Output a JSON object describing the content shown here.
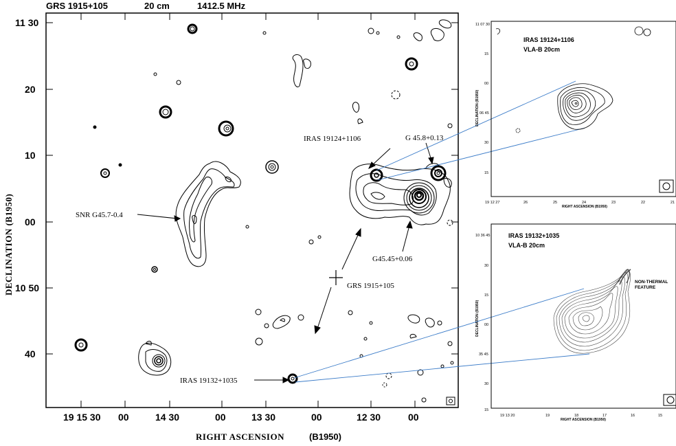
{
  "header": {
    "source": "GRS 1915+105",
    "wavelength": "20 cm",
    "frequency": "1412.5 MHz"
  },
  "main_panel": {
    "xlabel": "RIGHT ASCENSION",
    "xlabel_epoch": "(B1950)",
    "ylabel": "DECLINATION (B1950)",
    "x_ticks": [
      "19 15 30",
      "00",
      "14 30",
      "00",
      "13 30",
      "00",
      "12 30",
      "00"
    ],
    "y_ticks": [
      "11 30",
      "20",
      "10",
      "00",
      "10 50",
      "40"
    ]
  },
  "annotations": {
    "snr": "SNR G45.7-0.4",
    "iras1": "IRAS 19124+1106",
    "g458": "G 45.8+0.13",
    "g4545": "G45.45+0.06",
    "grs": "GRS 1915+105",
    "iras2": "IRAS 19132+1035"
  },
  "inset_top": {
    "title1": "IRAS 19124+1106",
    "title2": "VLA-B  20cm",
    "ylabel": "DECLINATION (B1950)",
    "xlabel": "RIGHT ASCENSION (B1950)",
    "y_ticks": [
      "11 07 30",
      "15",
      "00",
      "06 45",
      "30",
      "15"
    ],
    "x_ticks": [
      "19 12 27",
      "26",
      "25",
      "24",
      "23",
      "22",
      "21"
    ]
  },
  "inset_bottom": {
    "title1": "IRAS 19132+1035",
    "title2": "VLA-B  20cm",
    "feature": "NON-THERMAL",
    "feature2": "FEATURE",
    "ylabel": "DECLINATION (B1950)",
    "xlabel": "RIGHT ASCENSION (B1950)",
    "y_ticks": [
      "10 36 45",
      "30",
      "15",
      "00",
      "35 45",
      "30",
      "15"
    ],
    "x_ticks": [
      "19 13 20",
      "19",
      "18",
      "17",
      "16",
      "15"
    ]
  },
  "chart_data": {
    "type": "contour",
    "title": "GRS 1915+105   20 cm   1412.5 MHz",
    "xlabel": "RIGHT ASCENSION (B1950)",
    "ylabel": "DECLINATION (B1950)",
    "x_ticks": [
      "19 15 30",
      "00",
      "14 30",
      "00",
      "13 30",
      "00",
      "12 30",
      "00"
    ],
    "y_ticks": [
      "11 30",
      "20",
      "10",
      "00",
      "10 50",
      "40"
    ],
    "labeled_sources": [
      "SNR G45.7-0.4",
      "IRAS 19124+1106",
      "G 45.8+0.13",
      "G45.45+0.06",
      "GRS 1915+105",
      "IRAS 19132+1035"
    ]
  }
}
